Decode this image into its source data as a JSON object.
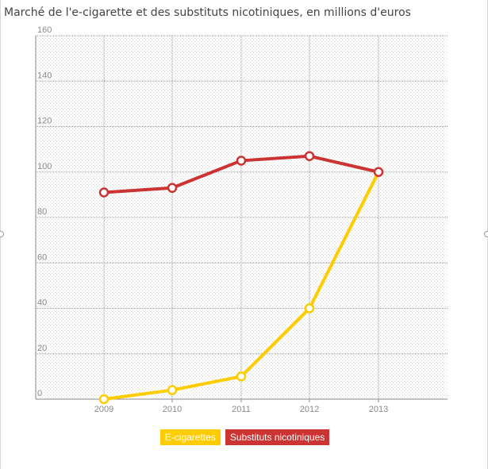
{
  "chart_data": {
    "type": "line",
    "title": "Marché de l'e-cigarette et des substituts nicotiniques, en millions d'euros",
    "categories": [
      "2009",
      "2010",
      "2011",
      "2012",
      "2013"
    ],
    "ylim": [
      0,
      160
    ],
    "yticks": [
      "0",
      "20",
      "40",
      "60",
      "80",
      "100",
      "120",
      "140",
      "160"
    ],
    "grid": true,
    "legend_position": "bottom-center",
    "series": [
      {
        "name": "E-cigarettes",
        "color": "#ffcc00",
        "values": [
          0,
          4,
          10,
          40,
          100
        ]
      },
      {
        "name": "Substituts nicotiniques",
        "color": "#cc3333",
        "values": [
          91,
          93,
          105,
          107,
          100
        ]
      }
    ]
  }
}
